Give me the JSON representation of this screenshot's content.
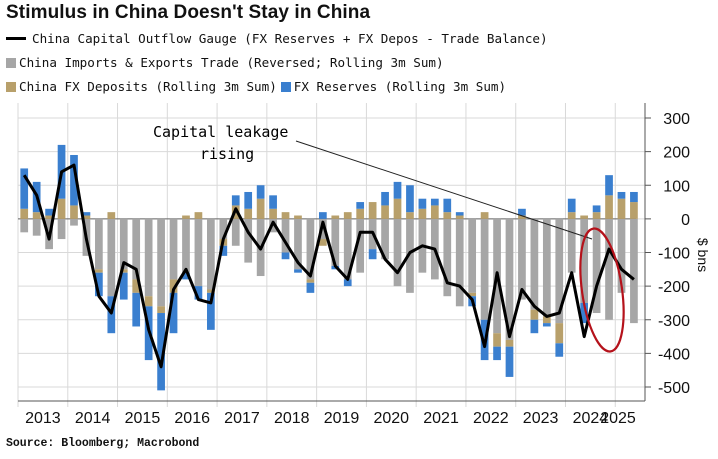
{
  "title": "Stimulus in China Doesn't Stay in China",
  "legend": [
    {
      "label": "China Capital Outflow Gauge (FX Reserves + FX Depos - Trade Balance)",
      "kind": "line",
      "color": "#000000"
    },
    {
      "label": "China Imports & Exports Trade (Reversed; Rolling 3m Sum)",
      "kind": "box",
      "color": "#a6a6a6"
    },
    {
      "label": "China FX Deposits (Rolling 3m Sum)",
      "kind": "box",
      "color": "#b8a06b"
    },
    {
      "label": "FX Reserves (Rolling 3m Sum)",
      "kind": "box",
      "color": "#3a7fcf"
    }
  ],
  "source": "Source: Bloomberg; Macrobond",
  "annotation": {
    "line1": "Capital leakage",
    "line2": "rising"
  },
  "chart_data": {
    "type": "bar",
    "title": "Stimulus in China Doesn't Stay in China",
    "xlabel": "",
    "ylabel": "$ bns",
    "ylim": [
      -500,
      300
    ],
    "yticks": [
      300,
      200,
      100,
      0,
      -100,
      -200,
      -300,
      -400,
      -500
    ],
    "xticks": [
      "2013",
      "2014",
      "2015",
      "2016",
      "2017",
      "2018",
      "2019",
      "2020",
      "2021",
      "2022",
      "2023",
      "2024",
      "2025"
    ],
    "x_start": "2013-01",
    "x_end": "2025-05",
    "grid": true,
    "y_axis_position": "right",
    "series": [
      {
        "name": "China Capital Outflow Gauge (FX Reserves + FX Depos - Trade Balance)",
        "kind": "line",
        "color": "#000000",
        "x": [
          "2013-01",
          "2013-04",
          "2013-07",
          "2013-10",
          "2014-01",
          "2014-04",
          "2014-07",
          "2014-10",
          "2015-01",
          "2015-04",
          "2015-07",
          "2015-10",
          "2016-01",
          "2016-04",
          "2016-07",
          "2016-10",
          "2017-01",
          "2017-04",
          "2017-07",
          "2017-10",
          "2018-01",
          "2018-04",
          "2018-07",
          "2018-10",
          "2019-01",
          "2019-04",
          "2019-07",
          "2019-10",
          "2020-01",
          "2020-04",
          "2020-07",
          "2020-10",
          "2021-01",
          "2021-04",
          "2021-07",
          "2021-10",
          "2022-01",
          "2022-04",
          "2022-07",
          "2022-10",
          "2023-01",
          "2023-04",
          "2023-07",
          "2023-10",
          "2024-01",
          "2024-04",
          "2024-07",
          "2024-10",
          "2025-01",
          "2025-04"
        ],
        "values": [
          130,
          70,
          -60,
          140,
          160,
          -60,
          -230,
          -280,
          -130,
          -150,
          -330,
          -440,
          -210,
          -150,
          -240,
          -250,
          -60,
          30,
          -40,
          -90,
          -10,
          -70,
          -130,
          -170,
          -10,
          -140,
          -180,
          -40,
          -40,
          -120,
          -160,
          -100,
          -80,
          -90,
          -190,
          -200,
          -240,
          -380,
          -160,
          -350,
          -210,
          -260,
          -290,
          -280,
          -160,
          -350,
          -200,
          -90,
          -150,
          -180
        ]
      },
      {
        "name": "China Imports & Exports Trade (Reversed; Rolling 3m Sum)",
        "kind": "bar",
        "color": "#a6a6a6",
        "x": [
          "2013-01",
          "2013-04",
          "2013-07",
          "2013-10",
          "2014-01",
          "2014-04",
          "2014-07",
          "2014-10",
          "2015-01",
          "2015-04",
          "2015-07",
          "2015-10",
          "2016-01",
          "2016-04",
          "2016-07",
          "2016-10",
          "2017-01",
          "2017-04",
          "2017-07",
          "2017-10",
          "2018-01",
          "2018-04",
          "2018-07",
          "2018-10",
          "2019-01",
          "2019-04",
          "2019-07",
          "2019-10",
          "2020-01",
          "2020-04",
          "2020-07",
          "2020-10",
          "2021-01",
          "2021-04",
          "2021-07",
          "2021-10",
          "2022-01",
          "2022-04",
          "2022-07",
          "2022-10",
          "2023-01",
          "2023-04",
          "2023-07",
          "2023-10",
          "2024-01",
          "2024-04",
          "2024-07",
          "2024-10",
          "2025-01",
          "2025-04"
        ],
        "values": [
          -40,
          -50,
          -90,
          -60,
          -20,
          -110,
          -150,
          -230,
          -150,
          -180,
          -230,
          -260,
          -180,
          -160,
          -200,
          -210,
          -60,
          -80,
          -130,
          -170,
          -40,
          -100,
          -150,
          -180,
          -60,
          -140,
          -180,
          -160,
          -90,
          -120,
          -200,
          -220,
          -160,
          -180,
          -230,
          -260,
          -220,
          -300,
          -340,
          -360,
          -240,
          -270,
          -290,
          -310,
          -160,
          -250,
          -280,
          -300,
          -220,
          -310
        ]
      },
      {
        "name": "China FX Deposits (Rolling 3m Sum)",
        "kind": "bar",
        "color": "#b8a06b",
        "x": [
          "2013-01",
          "2013-04",
          "2013-07",
          "2013-10",
          "2014-01",
          "2014-04",
          "2014-07",
          "2014-10",
          "2015-01",
          "2015-04",
          "2015-07",
          "2015-10",
          "2016-01",
          "2016-04",
          "2016-07",
          "2016-10",
          "2017-01",
          "2017-04",
          "2017-07",
          "2017-10",
          "2018-01",
          "2018-04",
          "2018-07",
          "2018-10",
          "2019-01",
          "2019-04",
          "2019-07",
          "2019-10",
          "2020-01",
          "2020-04",
          "2020-07",
          "2020-10",
          "2021-01",
          "2021-04",
          "2021-07",
          "2021-10",
          "2022-01",
          "2022-04",
          "2022-07",
          "2022-10",
          "2023-01",
          "2023-04",
          "2023-07",
          "2023-10",
          "2024-01",
          "2024-04",
          "2024-07",
          "2024-10",
          "2025-01",
          "2025-04"
        ],
        "values": [
          30,
          20,
          10,
          60,
          40,
          10,
          -10,
          20,
          -10,
          -40,
          -30,
          -20,
          -40,
          10,
          20,
          -10,
          -20,
          40,
          30,
          60,
          30,
          20,
          10,
          -10,
          -20,
          10,
          20,
          30,
          50,
          40,
          60,
          20,
          30,
          40,
          20,
          10,
          -10,
          20,
          -40,
          -20,
          10,
          -30,
          -20,
          -60,
          20,
          10,
          20,
          70,
          60,
          50
        ]
      },
      {
        "name": "FX Reserves (Rolling 3m Sum)",
        "kind": "bar",
        "color": "#3a7fcf",
        "x": [
          "2013-01",
          "2013-04",
          "2013-07",
          "2013-10",
          "2014-01",
          "2014-04",
          "2014-07",
          "2014-10",
          "2015-01",
          "2015-04",
          "2015-07",
          "2015-10",
          "2016-01",
          "2016-04",
          "2016-07",
          "2016-10",
          "2017-01",
          "2017-04",
          "2017-07",
          "2017-10",
          "2018-01",
          "2018-04",
          "2018-07",
          "2018-10",
          "2019-01",
          "2019-04",
          "2019-07",
          "2019-10",
          "2020-01",
          "2020-04",
          "2020-07",
          "2020-10",
          "2021-01",
          "2021-04",
          "2021-07",
          "2021-10",
          "2022-01",
          "2022-04",
          "2022-07",
          "2022-10",
          "2023-01",
          "2023-04",
          "2023-07",
          "2023-10",
          "2024-01",
          "2024-04",
          "2024-07",
          "2024-10",
          "2025-01",
          "2025-04"
        ],
        "values": [
          120,
          90,
          20,
          160,
          150,
          10,
          -70,
          -110,
          -80,
          -100,
          -160,
          -230,
          -120,
          -20,
          -40,
          -110,
          -30,
          30,
          50,
          40,
          40,
          -20,
          -10,
          -30,
          20,
          -10,
          -20,
          20,
          -30,
          40,
          50,
          80,
          30,
          20,
          40,
          10,
          -30,
          -120,
          -40,
          -90,
          20,
          -40,
          -10,
          -40,
          40,
          -60,
          20,
          60,
          20,
          30
        ]
      }
    ]
  }
}
